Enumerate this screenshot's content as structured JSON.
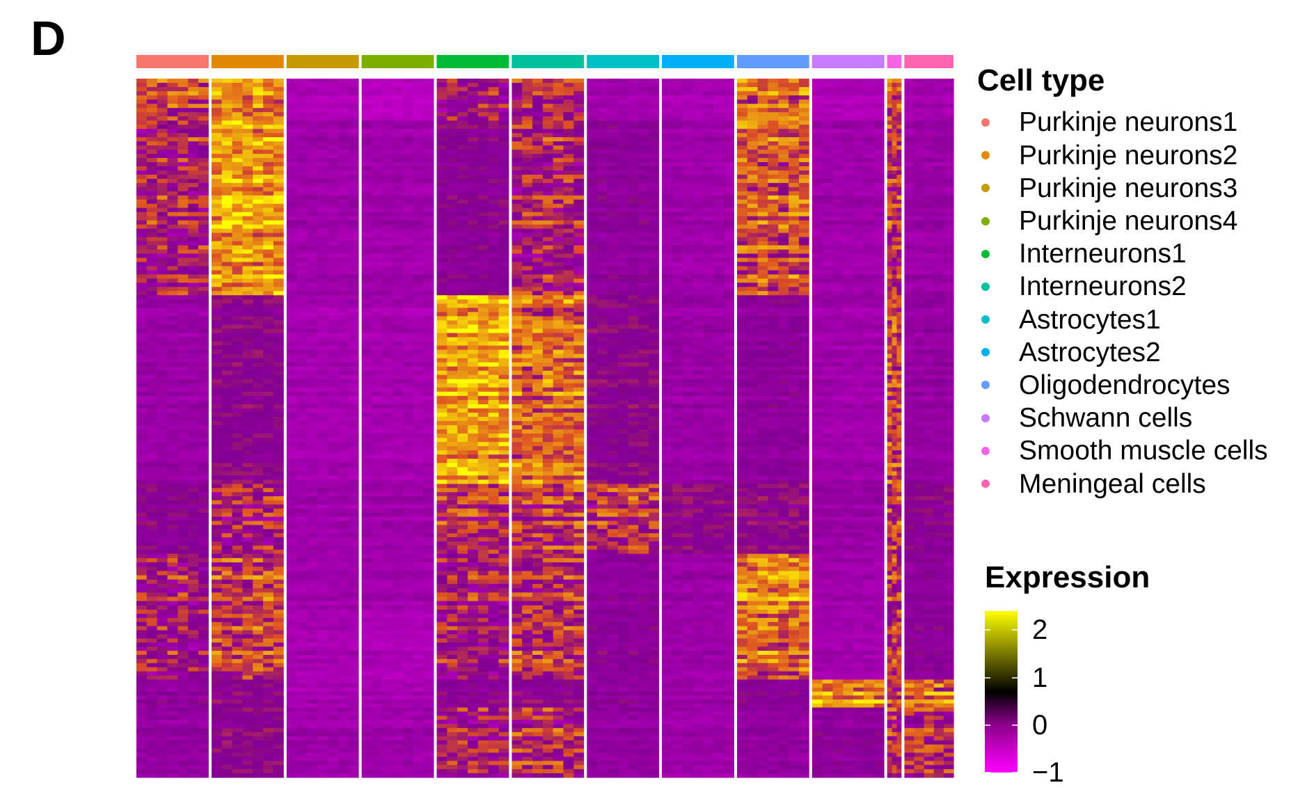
{
  "panel_label": "D",
  "chart_data": {
    "type": "heatmap",
    "title": "",
    "xlabel": "",
    "ylabel": "",
    "grid": false,
    "row_labels_shown": false,
    "column_groups": [
      {
        "name": "Purkinje neurons1",
        "color": "#F8766D",
        "relative_width": 1.0
      },
      {
        "name": "Purkinje neurons2",
        "color": "#E38900",
        "relative_width": 1.0
      },
      {
        "name": "Purkinje neurons3",
        "color": "#C49A00",
        "relative_width": 1.0
      },
      {
        "name": "Purkinje neurons4",
        "color": "#7CAE00",
        "relative_width": 1.0
      },
      {
        "name": "Interneurons1",
        "color": "#00BA38",
        "relative_width": 1.0
      },
      {
        "name": "Interneurons2",
        "color": "#00C19F",
        "relative_width": 1.0
      },
      {
        "name": "Astrocytes1",
        "color": "#00BFC4",
        "relative_width": 1.0
      },
      {
        "name": "Astrocytes2",
        "color": "#00B0F6",
        "relative_width": 1.0
      },
      {
        "name": "Oligodendrocytes",
        "color": "#619CFF",
        "relative_width": 1.0
      },
      {
        "name": "Schwann cells",
        "color": "#C77CFF",
        "relative_width": 1.0
      },
      {
        "name": "Smooth muscle cells",
        "color": "#F564E3",
        "relative_width": 0.2
      },
      {
        "name": "Meningeal cells",
        "color": "#FF64B0",
        "relative_width": 0.68
      }
    ],
    "gene_blocks": [
      {
        "marker_for": "Purkinje neurons1",
        "relative_rows": 0.06,
        "mean_expression": [
          0.9,
          1.4,
          -0.5,
          -0.7,
          0.4,
          0.6,
          -0.3,
          -0.4,
          1.2,
          -0.5,
          1.0,
          -0.3
        ]
      },
      {
        "marker_for": "Purkinje neurons2",
        "relative_rows": 0.25,
        "mean_expression": [
          0.4,
          1.5,
          -0.3,
          -0.3,
          0.1,
          0.4,
          0.0,
          -0.3,
          0.9,
          -0.3,
          0.6,
          -0.2
        ]
      },
      {
        "marker_for": "Interneurons1",
        "relative_rows": 0.27,
        "mean_expression": [
          -0.2,
          0.2,
          -0.4,
          -0.4,
          1.6,
          1.1,
          0.2,
          -0.2,
          0.0,
          -0.3,
          0.8,
          -0.1
        ]
      },
      {
        "marker_for": "Astrocytes1",
        "relative_rows": 0.1,
        "mean_expression": [
          0.1,
          0.3,
          -0.3,
          -0.3,
          0.5,
          0.6,
          0.5,
          0.2,
          0.2,
          -0.2,
          0.6,
          0.1
        ]
      },
      {
        "marker_for": "Oligodendrocytes",
        "relative_rows": 0.08,
        "mean_expression": [
          0.4,
          0.8,
          -0.3,
          -0.3,
          0.4,
          0.6,
          0.0,
          -0.2,
          1.4,
          -0.3,
          0.6,
          0.0
        ]
      },
      {
        "marker_for": "Oligodendrocytes",
        "relative_rows": 0.1,
        "mean_expression": [
          0.4,
          0.9,
          -0.4,
          -0.5,
          0.4,
          0.7,
          0.1,
          -0.2,
          1.2,
          -0.3,
          0.7,
          0.1
        ]
      },
      {
        "marker_for": "Schwann cells",
        "relative_rows": 0.04,
        "mean_expression": [
          0.0,
          0.2,
          -0.4,
          -0.4,
          0.1,
          0.2,
          0.0,
          -0.2,
          0.1,
          1.4,
          0.8,
          1.2
        ]
      },
      {
        "marker_for": "Meningeal cells",
        "relative_rows": 0.1,
        "mean_expression": [
          -0.1,
          0.2,
          -0.3,
          -0.3,
          0.3,
          0.5,
          -0.1,
          -0.3,
          -0.1,
          0.0,
          0.5,
          0.5
        ]
      }
    ],
    "color_scale": {
      "name": "Expression",
      "range": [
        -1,
        2.4
      ],
      "stops": [
        {
          "value": -1,
          "color": "#FF00FF"
        },
        {
          "value": 0,
          "color": "#3A003A"
        },
        {
          "value": 0.75,
          "color": "#000000"
        },
        {
          "value": 1.5,
          "color": "#6F6F00"
        },
        {
          "value": 2.4,
          "color": "#FFFF00"
        }
      ],
      "ticks": [
        2,
        1,
        0,
        -1
      ],
      "tick_labels": [
        "2",
        "1",
        "0",
        "−1"
      ]
    },
    "legend": {
      "title": "Cell type",
      "placement": "right",
      "entries": [
        "Purkinje neurons1",
        "Purkinje neurons2",
        "Purkinje neurons3",
        "Purkinje neurons4",
        "Interneurons1",
        "Interneurons2",
        "Astrocytes1",
        "Astrocytes2",
        "Oligodendrocytes",
        "Schwann cells",
        "Smooth muscle cells",
        "Meningeal cells"
      ]
    },
    "expression_legend": {
      "title": "Expression",
      "placement": "bottom-right"
    }
  }
}
